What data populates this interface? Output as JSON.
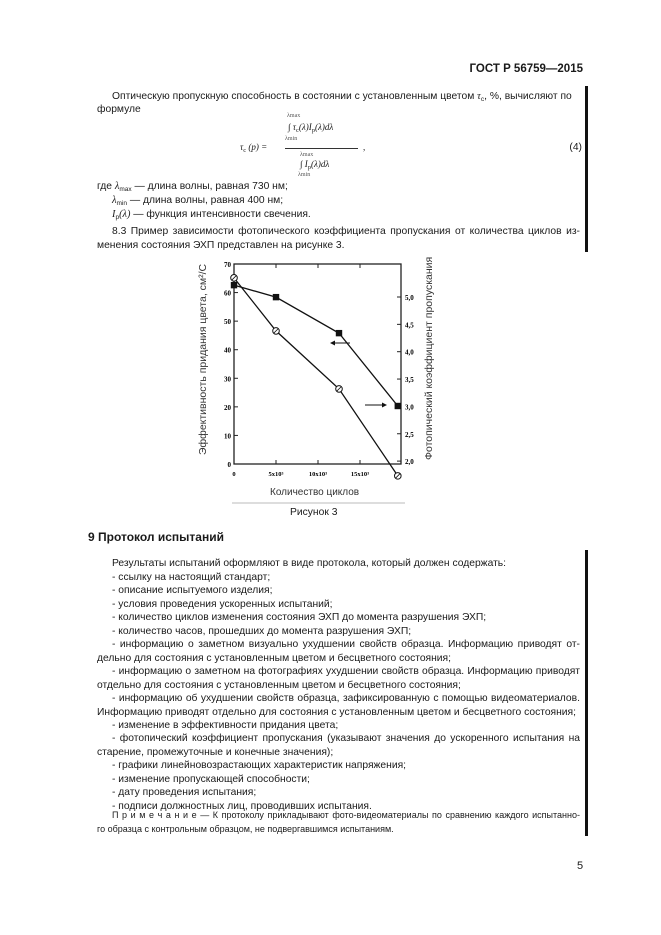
{
  "header": {
    "standard": "ГОСТ Р 56759—2015"
  },
  "intro": {
    "line1": "Оптическую пропускную способность в состоянии с установленным цветом",
    "tau_symbol": "τ",
    "tau_sub": "c",
    "line1_end": ", %, вычисляют по",
    "line2": "формуле"
  },
  "formula": {
    "lhs": "τ",
    "lhs_sub": "c",
    "lhs_arg": "(p) =",
    "numerator": "∫ τ",
    "numerator_rest": "(λ)I",
    "numerator_end": "(λ)dλ",
    "denominator": "∫ I",
    "denominator_end": "(λ)dλ",
    "limit_upper": "λmax",
    "limit_lower": "λmin",
    "p_sub": "p",
    "trailing": ",",
    "number": "(4)"
  },
  "definitions": [
    {
      "prefix": "где ",
      "symbol": "λ",
      "sub": "max",
      "text": " — длина волны, равная 730 нм;"
    },
    {
      "prefix": "",
      "symbol": "λ",
      "sub": "min",
      "text": " — длина волны, равная 400 нм;"
    },
    {
      "prefix": "",
      "symbol": "I",
      "sub": "p",
      "symbol_end": "(λ)",
      "text": " — функция интенсивности свечения."
    }
  ],
  "section_8_3": {
    "line1": "8.3 Пример зависимости фотопического коэффициента пропускания от количества циклов из-",
    "line2": "менения состояния ЭХП представлен на рисунке 3."
  },
  "figure": {
    "caption": "Рисунок 3"
  },
  "chart_data": {
    "type": "line",
    "xlabel": "Количество циклов",
    "ylabel": "Эффективность придания цвета, см²/С",
    "ylabel2": "Фотопический коэффициент пропускания",
    "x_ticks": [
      "0",
      "5x10³",
      "10x10³",
      "15x10³"
    ],
    "x_tick_values": [
      0,
      5000,
      10000,
      15000
    ],
    "xlim": [
      0,
      20000
    ],
    "y_ticks": [
      "0",
      "10",
      "20",
      "30",
      "40",
      "50",
      "60",
      "70"
    ],
    "ylim": [
      0,
      70
    ],
    "y2_ticks": [
      "2,0",
      "2,5",
      "3,0",
      "3,5",
      "4,0",
      "4,5",
      "5,0"
    ],
    "y2lim": [
      1.7,
      5.35
    ],
    "grid": false,
    "series": [
      {
        "marker": "filled-square",
        "axis": "left",
        "x": [
          0,
          5000,
          12500,
          19500
        ],
        "y": [
          62.6,
          58.4,
          45.8,
          20.3
        ]
      },
      {
        "marker": "open-circle",
        "axis": "right",
        "x": [
          0,
          5000,
          12500,
          19500
        ],
        "y": [
          5.35,
          4.38,
          3.32,
          1.73
        ]
      }
    ]
  },
  "section_9": {
    "title": "9 Протокол испытаний",
    "intro": "Результаты испытаний оформляют в виде протокола, который должен содержать:",
    "items": [
      [
        "- ссылку на настоящий стандарт;"
      ],
      [
        "- описание испытуемого изделия;"
      ],
      [
        "- условия проведения ускоренных испытаний;"
      ],
      [
        "- количество циклов изменения состояния ЭХП до момента разрушения ЭХП;"
      ],
      [
        "- количество часов, прошедших до момента разрушения ЭХП;"
      ],
      [
        "- информацию о заметном визуально ухудшении свойств образца. Информацию приводят от-",
        "дельно для состояния с установленным цветом и бесцветного состояния;"
      ],
      [
        "- информацию о заметном на фотографиях ухудшении свойств образца. Информацию приводят",
        "отдельно для состояния с установленным цветом и бесцветного состояния;"
      ],
      [
        "- информацию об ухудшении свойств образца, зафиксированную с помощью видеоматериалов.",
        "Информацию приводят отдельно для состояния с установленным цветом и бесцветного состояния;"
      ],
      [
        "- изменение в эффективности придания цвета;"
      ],
      [
        "- фотопический коэффициент пропускания (указывают значения до ускоренного испытания на",
        "старение, промежуточные и конечные значения);"
      ],
      [
        "- графики линейновозрастающих характеристик напряжения;"
      ],
      [
        "- изменение пропускающей способности;"
      ],
      [
        "- дату проведения испытания;"
      ],
      [
        "- подписи должностных лиц, проводивших испытания."
      ]
    ],
    "note_label": "П р и м е ч а н и е",
    "note_line1": " — К протоколу прикладывают фото-видеоматериалы по сравнению каждого испытанно-",
    "note_line2": "го образца с контрольным образцом, не подвергавшимся испытаниям."
  },
  "footer": {
    "page_number": "5"
  }
}
